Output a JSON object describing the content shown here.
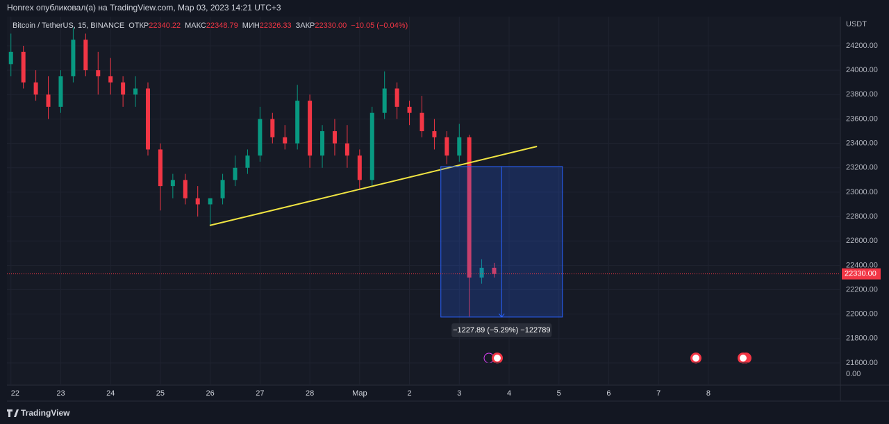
{
  "header": "Honrex опубликовал(а) на TradingView.com, Мар 03, 2023 14:21 UTC+3",
  "brand": "TradingView",
  "chart_data": {
    "type": "candlestick",
    "legend": {
      "symbol": "Bitcoin / TetherUS, 15, BINANCE",
      "fields": [
        {
          "label": "ОТКР",
          "value": "22340.22"
        },
        {
          "label": "МАКС",
          "value": "22348.79"
        },
        {
          "label": "МИН",
          "value": "22326.33"
        },
        {
          "label": "ЗАКР",
          "value": "22330.00"
        }
      ],
      "change": "−10.05 (−0.04%)"
    },
    "currency": "USDT",
    "volume_label": "0.00",
    "up_color": "#089981",
    "down_color": "#f23645",
    "x": [
      0,
      0.25,
      0.5,
      0.75,
      1,
      1.25,
      1.5,
      1.75,
      2,
      2.25,
      2.5,
      2.75,
      3,
      3.25,
      3.5,
      3.75,
      4,
      4.25,
      4.5,
      4.75,
      5,
      5.25,
      5.5,
      5.75,
      6,
      6.25,
      6.5,
      6.75,
      7,
      7.25,
      7.5,
      7.75,
      8,
      8.25,
      8.5,
      8.75,
      9,
      9.2,
      9.45,
      9.7
    ],
    "open": [
      24050,
      24150,
      23900,
      23800,
      23700,
      23950,
      24250,
      24000,
      23950,
      23900,
      23800,
      23850,
      23350,
      23050,
      23100,
      22950,
      22900,
      22950,
      23100,
      23200,
      23300,
      23600,
      23450,
      23400,
      23750,
      23300,
      23500,
      23400,
      23300,
      23100,
      23650,
      23850,
      23700,
      23650,
      23500,
      23450,
      23300,
      23450,
      22300,
      22380
    ],
    "high": [
      24300,
      24200,
      24000,
      23950,
      24000,
      24350,
      24300,
      24150,
      24100,
      23950,
      23950,
      23900,
      23400,
      23150,
      23150,
      23050,
      22950,
      23150,
      23300,
      23350,
      23700,
      23650,
      23550,
      23880,
      23800,
      23550,
      23600,
      23550,
      23350,
      23700,
      23990,
      23900,
      23750,
      23790,
      23600,
      23500,
      23560,
      23470,
      22450,
      22420
    ],
    "low": [
      23950,
      23850,
      23750,
      23600,
      23650,
      23900,
      23950,
      23800,
      23800,
      23700,
      23700,
      23300,
      22850,
      22950,
      22900,
      22800,
      22730,
      22900,
      23050,
      23150,
      23250,
      23400,
      23350,
      23350,
      23200,
      23200,
      23300,
      23200,
      23020,
      23050,
      23600,
      23600,
      23550,
      23450,
      23350,
      23230,
      23250,
      21980,
      22250,
      22300
    ],
    "close": [
      24150,
      23900,
      23800,
      23700,
      23950,
      24250,
      24000,
      23950,
      23900,
      23800,
      23850,
      23350,
      23050,
      23100,
      22950,
      22900,
      22950,
      23100,
      23200,
      23300,
      23600,
      23450,
      23400,
      23750,
      23300,
      23500,
      23400,
      23300,
      23100,
      23650,
      23850,
      23700,
      23650,
      23500,
      23450,
      23300,
      23450,
      22300,
      22380,
      22330
    ],
    "xlim": [
      -0.08,
      16.65
    ],
    "ylim": [
      21560,
      24439
    ],
    "xticks": [
      {
        "value": 0,
        "label": "22"
      },
      {
        "value": 1,
        "label": "23"
      },
      {
        "value": 2,
        "label": "24"
      },
      {
        "value": 3,
        "label": "25"
      },
      {
        "value": 4,
        "label": "26"
      },
      {
        "value": 5,
        "label": "27"
      },
      {
        "value": 6,
        "label": "28"
      },
      {
        "value": 7,
        "label": "Мар"
      },
      {
        "value": 8,
        "label": "2"
      },
      {
        "value": 9,
        "label": "3"
      },
      {
        "value": 10,
        "label": "4"
      },
      {
        "value": 11,
        "label": "5"
      },
      {
        "value": 12,
        "label": "6"
      },
      {
        "value": 13,
        "label": "7"
      },
      {
        "value": 14,
        "label": "8"
      }
    ],
    "yticks": [
      {
        "value": 24200,
        "label": "24200.00"
      },
      {
        "value": 24000,
        "label": "24000.00"
      },
      {
        "value": 23800,
        "label": "23800.00"
      },
      {
        "value": 23600,
        "label": "23600.00"
      },
      {
        "value": 23400,
        "label": "23400.00"
      },
      {
        "value": 23200,
        "label": "23200.00"
      },
      {
        "value": 23000,
        "label": "23000.00"
      },
      {
        "value": 22800,
        "label": "22800.00"
      },
      {
        "value": 22600,
        "label": "22600.00"
      },
      {
        "value": 22400,
        "label": "22400.00"
      },
      {
        "value": 22200,
        "label": "22200.00"
      },
      {
        "value": 22000,
        "label": "22000.00"
      },
      {
        "value": 21800,
        "label": "21800.00"
      },
      {
        "value": 21600,
        "label": "21600.00"
      }
    ],
    "grid": true,
    "last_price": {
      "value": 22330,
      "label": "22330.00"
    },
    "trendline": {
      "x": [
        3.99,
        10.56
      ],
      "y": [
        22727,
        23375
      ],
      "color": "#f0e442"
    },
    "measure": {
      "x": [
        8.63,
        11.07
      ],
      "y": [
        23210,
        21976
      ],
      "label": "−1227.89 (−5.29%) −122789"
    }
  }
}
